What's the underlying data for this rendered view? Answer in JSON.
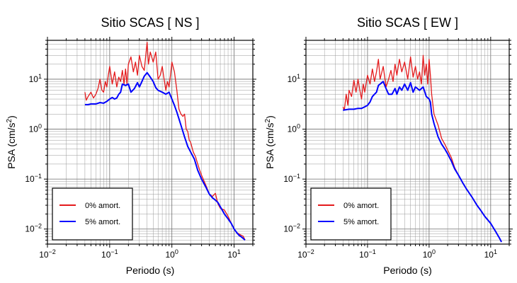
{
  "chart_data": [
    {
      "type": "line",
      "title": "Sitio SCAS [ NS ]",
      "xlabel": "Periodo (s)",
      "ylabel_main": "PSA (cm/s",
      "ylabel_sup": "2",
      "ylabel_tail": ")",
      "xscale": "log",
      "yscale": "log",
      "xlim": [
        0.01,
        20
      ],
      "ylim": [
        0.005,
        60
      ],
      "grid": true,
      "legend_position": "bottom-left",
      "xticks": [
        {
          "value": 0.01,
          "base": "10",
          "exp": "−2"
        },
        {
          "value": 0.1,
          "base": "10",
          "exp": "−1"
        },
        {
          "value": 1,
          "base": "10",
          "exp": "0"
        },
        {
          "value": 10,
          "base": "10",
          "exp": "1"
        }
      ],
      "yticks": [
        {
          "value": 0.01,
          "base": "10",
          "exp": "−2"
        },
        {
          "value": 0.1,
          "base": "10",
          "exp": "−1"
        },
        {
          "value": 1,
          "base": "10",
          "exp": "0"
        },
        {
          "value": 10,
          "base": "10",
          "exp": "1"
        }
      ],
      "series": [
        {
          "name": "0% amort.",
          "color": "#e41a1c",
          "x": [
            0.04,
            0.042,
            0.045,
            0.05,
            0.055,
            0.06,
            0.065,
            0.07,
            0.075,
            0.08,
            0.085,
            0.09,
            0.095,
            0.1,
            0.11,
            0.12,
            0.13,
            0.14,
            0.15,
            0.16,
            0.17,
            0.18,
            0.19,
            0.2,
            0.22,
            0.24,
            0.26,
            0.28,
            0.3,
            0.33,
            0.36,
            0.4,
            0.42,
            0.45,
            0.5,
            0.55,
            0.6,
            0.65,
            0.7,
            0.75,
            0.8,
            0.85,
            0.9,
            0.95,
            1.0,
            1.1,
            1.2,
            1.3,
            1.4,
            1.5,
            1.6,
            1.7,
            1.8,
            1.9,
            2.0,
            2.2,
            2.4,
            2.6,
            2.8,
            3.0,
            3.3,
            3.6,
            4.0,
            4.5,
            5.0,
            5.5,
            6.0,
            7.0,
            8.0,
            9.0,
            10,
            11,
            12,
            13,
            14,
            15
          ],
          "y": [
            5.5,
            3.8,
            4.5,
            5.5,
            4.2,
            5.0,
            6.5,
            10,
            6.0,
            5.5,
            9.0,
            7.0,
            12,
            18,
            8,
            14,
            7,
            11,
            9,
            15,
            8,
            16,
            8,
            20,
            28,
            14,
            22,
            12,
            30,
            18,
            15,
            55,
            20,
            35,
            22,
            35,
            10,
            12,
            18,
            10,
            6,
            9,
            7,
            12,
            22,
            14,
            6,
            2.5,
            2.0,
            1.8,
            2.0,
            1.0,
            0.9,
            0.6,
            0.55,
            0.35,
            0.28,
            0.2,
            0.15,
            0.12,
            0.09,
            0.07,
            0.05,
            0.045,
            0.052,
            0.032,
            0.026,
            0.024,
            0.018,
            0.013,
            0.01,
            0.0085,
            0.008,
            0.0075,
            0.0072,
            0.006
          ]
        },
        {
          "name": "5% amort.",
          "color": "#0000ff",
          "x": [
            0.04,
            0.045,
            0.05,
            0.06,
            0.07,
            0.08,
            0.09,
            0.1,
            0.11,
            0.12,
            0.13,
            0.14,
            0.15,
            0.16,
            0.18,
            0.2,
            0.22,
            0.25,
            0.28,
            0.3,
            0.33,
            0.36,
            0.4,
            0.45,
            0.5,
            0.55,
            0.6,
            0.7,
            0.8,
            0.9,
            1.0,
            1.1,
            1.2,
            1.4,
            1.6,
            1.8,
            2.0,
            2.3,
            2.6,
            3.0,
            3.5,
            4.0,
            4.5,
            5.0,
            5.5,
            6.0,
            7.0,
            8.0,
            9.0,
            10,
            11,
            12,
            13,
            14,
            15
          ],
          "y": [
            3.1,
            3.1,
            3.2,
            3.2,
            3.4,
            3.3,
            3.6,
            4.0,
            4.3,
            4.0,
            4.2,
            5.0,
            5.5,
            8.0,
            7.5,
            8.0,
            5.5,
            6.5,
            8.5,
            7.0,
            9.0,
            11.5,
            13.5,
            11.0,
            9.0,
            6.8,
            6.0,
            5.5,
            5.0,
            5.5,
            4.0,
            3.0,
            2.2,
            1.2,
            0.7,
            0.45,
            0.35,
            0.25,
            0.15,
            0.1,
            0.07,
            0.05,
            0.042,
            0.038,
            0.034,
            0.028,
            0.02,
            0.016,
            0.013,
            0.01,
            0.0085,
            0.0075,
            0.007,
            0.0065,
            0.006
          ]
        }
      ]
    },
    {
      "type": "line",
      "title": "Sitio SCAS [ EW ]",
      "xlabel": "Periodo (s)",
      "ylabel_main": "PSA (cm/s",
      "ylabel_sup": "2",
      "ylabel_tail": ")",
      "xscale": "log",
      "yscale": "log",
      "xlim": [
        0.01,
        20
      ],
      "ylim": [
        0.005,
        60
      ],
      "grid": true,
      "legend_position": "bottom-left",
      "xticks": [
        {
          "value": 0.01,
          "base": "10",
          "exp": "−2"
        },
        {
          "value": 0.1,
          "base": "10",
          "exp": "−1"
        },
        {
          "value": 1,
          "base": "10",
          "exp": "0"
        },
        {
          "value": 10,
          "base": "10",
          "exp": "1"
        }
      ],
      "yticks": [
        {
          "value": 0.01,
          "base": "10",
          "exp": "−2"
        },
        {
          "value": 0.1,
          "base": "10",
          "exp": "−1"
        },
        {
          "value": 1,
          "base": "10",
          "exp": "0"
        },
        {
          "value": 10,
          "base": "10",
          "exp": "1"
        }
      ],
      "series": [
        {
          "name": "0% amort.",
          "color": "#e41a1c",
          "x": [
            0.04,
            0.042,
            0.045,
            0.048,
            0.05,
            0.055,
            0.06,
            0.065,
            0.07,
            0.075,
            0.08,
            0.085,
            0.09,
            0.1,
            0.11,
            0.12,
            0.13,
            0.14,
            0.15,
            0.16,
            0.18,
            0.2,
            0.22,
            0.24,
            0.26,
            0.28,
            0.3,
            0.33,
            0.36,
            0.4,
            0.45,
            0.5,
            0.55,
            0.6,
            0.65,
            0.7,
            0.75,
            0.8,
            0.85,
            0.9,
            0.95,
            1.0,
            1.05,
            1.1,
            1.2,
            1.4,
            1.6,
            1.8,
            2.0,
            2.3,
            2.6,
            3.0,
            3.5,
            4.0,
            5.0,
            6.0,
            7.0,
            8.0,
            10,
            12,
            14,
            15
          ],
          "y": [
            2.8,
            2.4,
            5.0,
            3.0,
            6.0,
            4.5,
            9.5,
            5.5,
            10,
            6.0,
            4.0,
            8.0,
            5.5,
            12,
            8,
            16,
            9,
            14,
            25,
            10,
            18,
            7,
            10,
            15,
            9,
            20,
            12,
            25,
            14,
            22,
            10,
            28,
            11,
            18,
            10,
            14,
            8,
            30,
            12,
            20,
            8,
            25,
            12,
            5.0,
            2.0,
            1.2,
            0.65,
            0.5,
            0.38,
            0.27,
            0.17,
            0.12,
            0.085,
            0.065,
            0.043,
            0.03,
            0.023,
            0.018,
            0.013,
            0.009,
            0.0065,
            0.0055
          ]
        },
        {
          "name": "5% amort.",
          "color": "#0000ff",
          "x": [
            0.04,
            0.05,
            0.06,
            0.07,
            0.08,
            0.09,
            0.1,
            0.11,
            0.12,
            0.13,
            0.14,
            0.15,
            0.16,
            0.18,
            0.2,
            0.22,
            0.25,
            0.28,
            0.3,
            0.33,
            0.36,
            0.4,
            0.45,
            0.5,
            0.55,
            0.6,
            0.7,
            0.8,
            0.9,
            1.0,
            1.05,
            1.1,
            1.2,
            1.4,
            1.6,
            1.8,
            2.0,
            2.3,
            2.6,
            3.0,
            3.5,
            4.0,
            5.0,
            6.0,
            7.0,
            8.0,
            10,
            12,
            14,
            15
          ],
          "y": [
            2.4,
            2.5,
            2.5,
            2.6,
            2.6,
            2.8,
            3.0,
            3.5,
            4.5,
            5.0,
            5.5,
            7.5,
            8.0,
            9.0,
            6.5,
            5.0,
            5.0,
            6.5,
            5.0,
            7.0,
            6.0,
            8.0,
            6.0,
            8.5,
            5.5,
            7.0,
            6.0,
            7.0,
            4.5,
            4.0,
            3.5,
            2.0,
            1.3,
            0.7,
            0.5,
            0.4,
            0.32,
            0.23,
            0.16,
            0.12,
            0.085,
            0.065,
            0.043,
            0.03,
            0.023,
            0.018,
            0.013,
            0.009,
            0.0065,
            0.0055
          ]
        }
      ]
    }
  ]
}
